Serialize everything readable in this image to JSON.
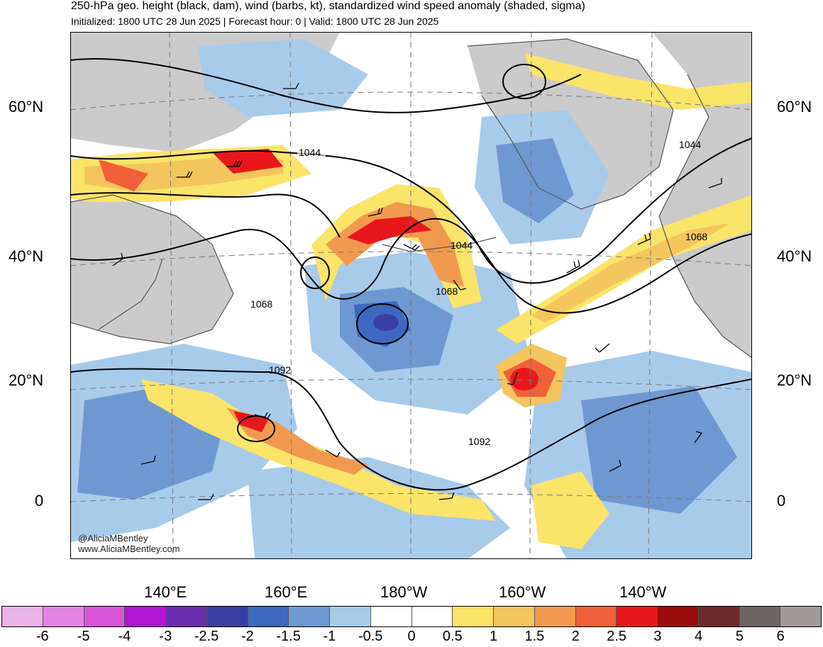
{
  "header": {
    "title": "250-hPa geo. height (black, dam), wind (barbs, kt), standardized wind speed anomaly (shaded, sigma)",
    "subtitle": "Initialized: 1800 UTC 28 Jun 2025 | Forecast hour: 0 | Valid: 1800 UTC 28 Jun 2025"
  },
  "lat_labels": [
    "60°N",
    "40°N",
    "20°N",
    "0"
  ],
  "lon_labels": [
    "140°E",
    "160°E",
    "180°W",
    "160°W",
    "140°W"
  ],
  "contour_labels": [
    "1044",
    "1044",
    "1044",
    "1068",
    "1068",
    "1068",
    "1092",
    "1092"
  ],
  "credits": [
    "@AliciaMBentley",
    "www.AliciaMBentley.com"
  ],
  "colorbar": {
    "labels": [
      "-6",
      "-5",
      "-4",
      "-3",
      "-2.5",
      "-2",
      "-1.5",
      "-1",
      "-0.5",
      "0",
      "0.5",
      "1",
      "1.5",
      "2",
      "2.5",
      "3",
      "4",
      "5",
      "6"
    ],
    "colors": [
      "#e8b4e6",
      "#e483e3",
      "#d855d8",
      "#b018d0",
      "#6a2fb0",
      "#3b3fa4",
      "#3c68c0",
      "#6e98d2",
      "#a9cbea",
      "#ffffff",
      "#ffffff",
      "#fbe46a",
      "#f5c55f",
      "#f19a4f",
      "#f16038",
      "#e8181a",
      "#9b0d0d",
      "#6e2a2a",
      "#6e6664",
      "#a39998"
    ]
  },
  "colors": {
    "land": "#c8c8c8",
    "contour": "#000000",
    "coast": "#555555"
  }
}
